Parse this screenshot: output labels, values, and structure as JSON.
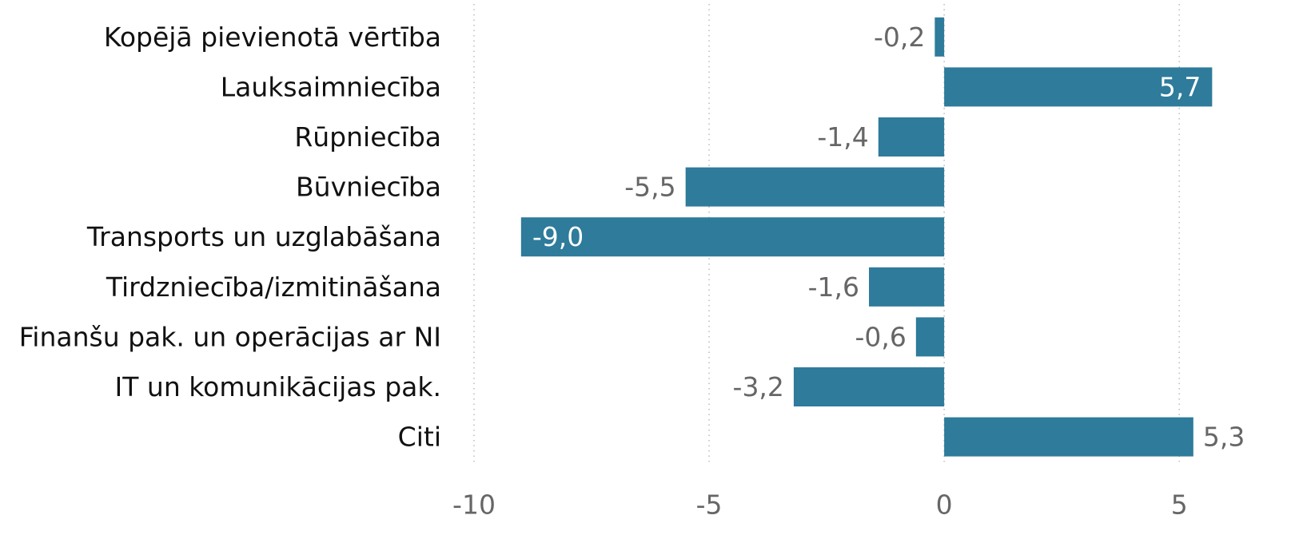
{
  "chart_data": {
    "type": "hbar",
    "categories": [
      "Kopējā pievienotā vērtība",
      "Lauksaimniecība",
      "Rūpniecība",
      "Būvniecība",
      "Transports un uzglabāšana",
      "Tirdzniecība/izmitināšana",
      "Finanšu pak. un operācijas ar NI",
      "IT un komunikācijas pak.",
      "Citi"
    ],
    "values": [
      -0.2,
      5.7,
      -1.4,
      -5.5,
      -9.0,
      -1.6,
      -0.6,
      -3.2,
      5.3
    ],
    "value_labels": [
      "-0,2",
      "5,7",
      "-1,4",
      "-5,5",
      "-9,0",
      "-1,6",
      "-0,6",
      "-3,2",
      "5,3"
    ],
    "color": "#2e7b9b",
    "xlim": [
      -10,
      6
    ],
    "xticks": [
      -10,
      -5,
      0,
      5
    ],
    "grid": true
  }
}
